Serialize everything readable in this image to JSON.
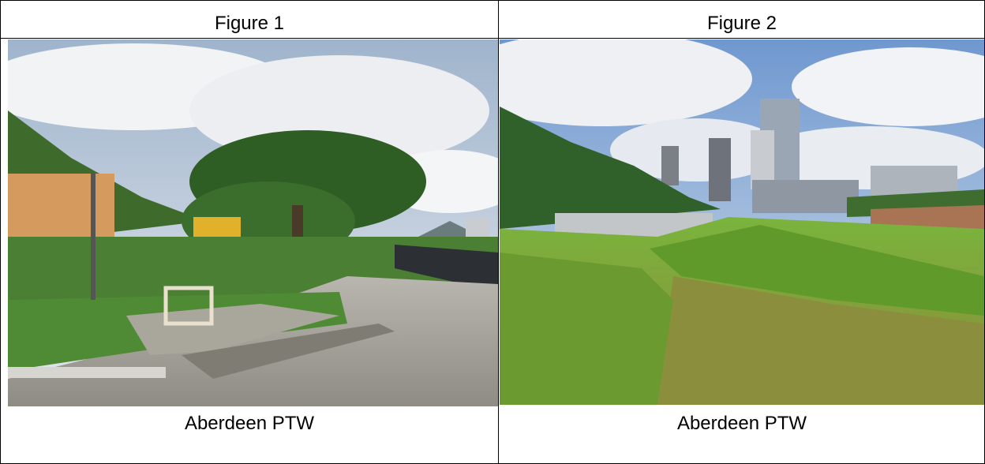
{
  "table": {
    "headers": [
      "Figure 1",
      "Figure 2"
    ],
    "captions": [
      "Aberdeen PTW",
      "Aberdeen PTW"
    ]
  }
}
